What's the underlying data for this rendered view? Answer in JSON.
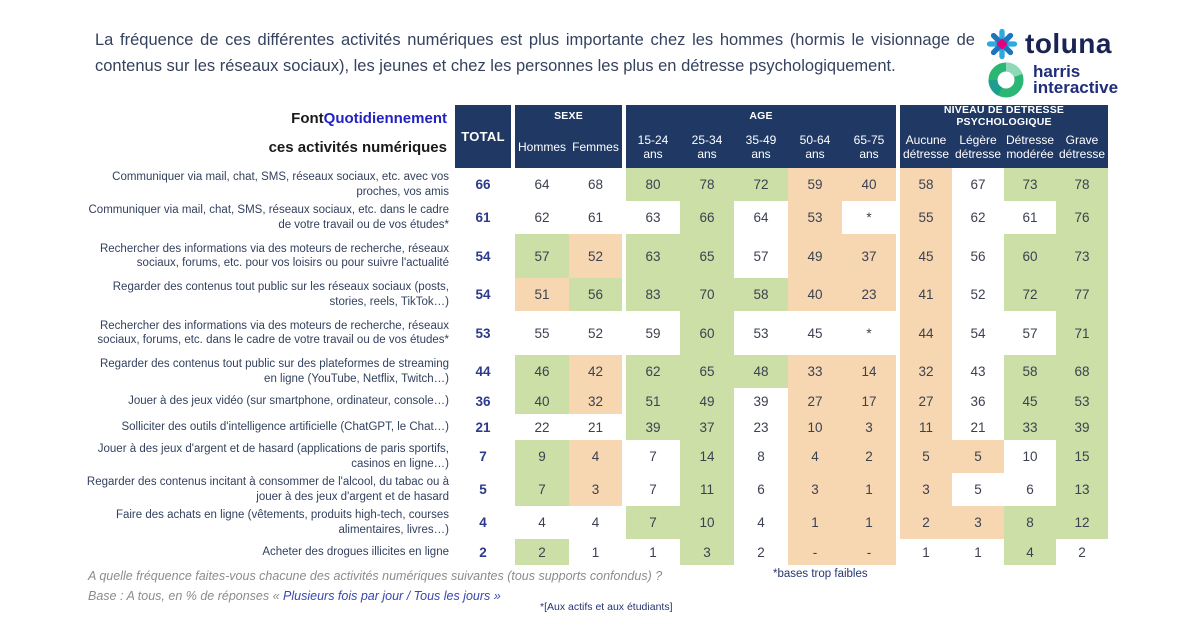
{
  "header": {
    "title": "La fréquence de ces différentes activités numériques est plus importante chez les hommes (hormis le visionnage de contenus sur les réseaux sociaux), les jeunes et chez les personnes les plus en détresse psychologiquement.",
    "logo": {
      "toluna": "toluna",
      "harris_line1": "harris",
      "harris_line2": "interactive"
    }
  },
  "chart_data": {
    "type": "table",
    "title_prefix": "Font ",
    "title_highlight": "Quotidiennement",
    "title_suffix": " ces activités numériques",
    "total_label": "TOTAL",
    "column_groups": [
      {
        "label": "SEXE",
        "cols": [
          "Hommes",
          "Femmes"
        ]
      },
      {
        "label": "AGE",
        "cols": [
          "15-24\nans",
          "25-34\nans",
          "35-49\nans",
          "50-64\nans",
          "65-75\nans"
        ]
      },
      {
        "label": "NIVEAU DE DETRESSE PSYCHOLOGIQUE",
        "cols": [
          "Aucune\ndétresse",
          "Légère\ndétresse",
          "Détresse\nmodérée",
          "Grave\ndétresse"
        ]
      }
    ],
    "colors": {
      "g": "#CBDFA6",
      "o": "#F7D7B1",
      "w": "#FFFFFF",
      "navy": "#1F3864"
    },
    "rows": [
      {
        "label": "Communiquer via mail, chat, SMS, réseaux sociaux, etc. avec vos proches, vos amis",
        "values": [
          "66",
          "64",
          "68",
          "80",
          "78",
          "72",
          "59",
          "40",
          "58",
          "67",
          "73",
          "78"
        ],
        "highlight": [
          "w",
          "w",
          "g",
          "g",
          "g",
          "o",
          "o",
          "o",
          "w",
          "g",
          "g"
        ]
      },
      {
        "label": "Communiquer via mail, chat, SMS, réseaux sociaux, etc. dans le cadre de votre travail ou de vos études*",
        "values": [
          "61",
          "62",
          "61",
          "63",
          "66",
          "64",
          "53",
          "*",
          "55",
          "62",
          "61",
          "76"
        ],
        "highlight": [
          "w",
          "w",
          "w",
          "g",
          "w",
          "o",
          "w",
          "o",
          "w",
          "w",
          "g"
        ]
      },
      {
        "label": "Rechercher des informations via des moteurs de recherche, réseaux sociaux, forums, etc. pour vos loisirs ou pour suivre l'actualité",
        "values": [
          "54",
          "57",
          "52",
          "63",
          "65",
          "57",
          "49",
          "37",
          "45",
          "56",
          "60",
          "73"
        ],
        "highlight": [
          "g",
          "o",
          "g",
          "g",
          "w",
          "o",
          "o",
          "o",
          "w",
          "g",
          "g"
        ]
      },
      {
        "label": "Regarder des contenus tout public sur les réseaux sociaux (posts, stories, reels, TikTok…)",
        "values": [
          "54",
          "51",
          "56",
          "83",
          "70",
          "58",
          "40",
          "23",
          "41",
          "52",
          "72",
          "77"
        ],
        "highlight": [
          "o",
          "g",
          "g",
          "g",
          "g",
          "o",
          "o",
          "o",
          "w",
          "g",
          "g"
        ]
      },
      {
        "label": "Rechercher des informations via des moteurs de recherche, réseaux sociaux, forums, etc. dans le cadre de votre travail ou de vos études*",
        "values": [
          "53",
          "55",
          "52",
          "59",
          "60",
          "53",
          "45",
          "*",
          "44",
          "54",
          "57",
          "71"
        ],
        "highlight": [
          "w",
          "w",
          "w",
          "g",
          "w",
          "w",
          "w",
          "o",
          "w",
          "w",
          "g"
        ]
      },
      {
        "label": "Regarder des contenus tout public sur des plateformes de streaming en ligne (YouTube, Netflix, Twitch…)",
        "values": [
          "44",
          "46",
          "42",
          "62",
          "65",
          "48",
          "33",
          "14",
          "32",
          "43",
          "58",
          "68"
        ],
        "highlight": [
          "g",
          "o",
          "g",
          "g",
          "g",
          "o",
          "o",
          "o",
          "w",
          "g",
          "g"
        ]
      },
      {
        "label": "Jouer à des jeux vidéo (sur smartphone, ordinateur, console…)",
        "values": [
          "36",
          "40",
          "32",
          "51",
          "49",
          "39",
          "27",
          "17",
          "27",
          "36",
          "45",
          "53"
        ],
        "highlight": [
          "g",
          "o",
          "g",
          "g",
          "w",
          "o",
          "o",
          "o",
          "w",
          "g",
          "g"
        ]
      },
      {
        "label": "Solliciter des outils d'intelligence artificielle (ChatGPT, le Chat…)",
        "values": [
          "21",
          "22",
          "21",
          "39",
          "37",
          "23",
          "10",
          "3",
          "11",
          "21",
          "33",
          "39"
        ],
        "highlight": [
          "w",
          "w",
          "g",
          "g",
          "w",
          "o",
          "o",
          "o",
          "w",
          "g",
          "g"
        ]
      },
      {
        "label": "Jouer à des jeux d'argent et de hasard (applications de paris sportifs, casinos en ligne…)",
        "values": [
          "7",
          "9",
          "4",
          "7",
          "14",
          "8",
          "4",
          "2",
          "5",
          "5",
          "10",
          "15"
        ],
        "highlight": [
          "g",
          "o",
          "w",
          "g",
          "w",
          "o",
          "o",
          "o",
          "o",
          "w",
          "g"
        ]
      },
      {
        "label": "Regarder des contenus incitant à consommer de l'alcool, du tabac ou à jouer à des jeux d'argent et de hasard",
        "values": [
          "5",
          "7",
          "3",
          "7",
          "11",
          "6",
          "3",
          "1",
          "3",
          "5",
          "6",
          "13"
        ],
        "highlight": [
          "g",
          "o",
          "w",
          "g",
          "w",
          "o",
          "o",
          "o",
          "w",
          "w",
          "g"
        ]
      },
      {
        "label": "Faire des achats en ligne (vêtements, produits high-tech, courses alimentaires, livres…)",
        "values": [
          "4",
          "4",
          "4",
          "7",
          "10",
          "4",
          "1",
          "1",
          "2",
          "3",
          "8",
          "12"
        ],
        "highlight": [
          "w",
          "w",
          "g",
          "g",
          "w",
          "o",
          "o",
          "o",
          "o",
          "g",
          "g"
        ]
      },
      {
        "label": "Acheter des drogues illicites en ligne",
        "values": [
          "2",
          "2",
          "1",
          "1",
          "3",
          "2",
          "-",
          "-",
          "1",
          "1",
          "4",
          "2"
        ],
        "highlight": [
          "g",
          "w",
          "w",
          "g",
          "w",
          "o",
          "o",
          "w",
          "w",
          "g",
          "w"
        ]
      }
    ]
  },
  "footnotes": {
    "weak_bases": "*bases trop faibles",
    "actifs": "*[Aux actifs et aux étudiants]"
  },
  "footer": {
    "question": "A quelle fréquence faites-vous chacune des activités numériques suivantes (tous supports confondus) ?",
    "base_prefix": "Base : A tous, en % de réponses « ",
    "base_highlight": "Plusieurs fois par jour / Tous les jours",
    "base_suffix": " »"
  }
}
